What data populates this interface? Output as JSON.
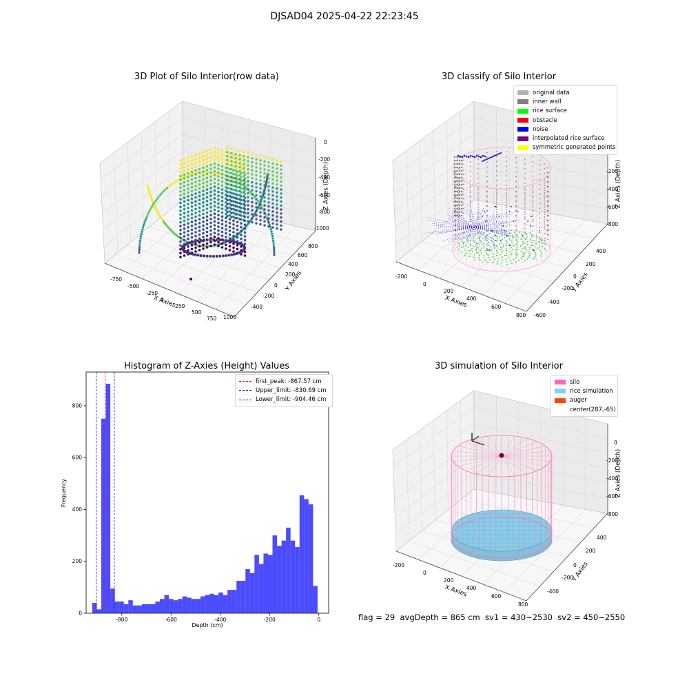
{
  "suptitle": "DJSAD04 2025-04-22 22:23:45",
  "panels": {
    "raw": {
      "title": "3D Plot of Silo Interior(row data)",
      "xlabel": "X Axies",
      "ylabel": "Y Axies",
      "zlabel": "Z Axies (Depth)",
      "xticks": [
        "-750",
        "-500",
        "-250",
        "0",
        "250",
        "500",
        "750",
        "1000"
      ],
      "yticks": [
        "-400",
        "-200",
        "0",
        "200",
        "400",
        "600",
        "800"
      ],
      "zticks": [
        "0",
        "-200",
        "-400",
        "-600",
        "-800",
        "-1000"
      ]
    },
    "classify": {
      "title": "3D classify of Silo Interior",
      "xlabel": "X Axies",
      "ylabel": "Y Axies",
      "zlabel": "Z Axies (Depth)",
      "xticks": [
        "-200",
        "0",
        "200",
        "400",
        "600",
        "800"
      ],
      "yticks": [
        "-600",
        "-400",
        "-200",
        "0",
        "200",
        "400"
      ],
      "zticks": [
        "0",
        "-200",
        "-400",
        "-600",
        "-800"
      ],
      "legend": [
        {
          "label": "original data",
          "color": "#b3b3b3"
        },
        {
          "label": "inner wall",
          "color": "#808080"
        },
        {
          "label": "rice surface",
          "color": "#00ff00"
        },
        {
          "label": "obstacle",
          "color": "#ff0000"
        },
        {
          "label": "noise",
          "color": "#0000ff"
        },
        {
          "label": "interpolated rice surface",
          "color": "#800080"
        },
        {
          "label": "symmetric generated points",
          "color": "#ffff00"
        }
      ]
    },
    "simulation": {
      "title": "3D simulation of Silo Interior",
      "xlabel": "X Axies",
      "ylabel": "Y Axies",
      "zlabel": "Z Axies (Depth)",
      "xticks": [
        "-200",
        "0",
        "200",
        "400",
        "600",
        "800"
      ],
      "yticks": [
        "-400",
        "-200",
        "0",
        "200",
        "400"
      ],
      "zticks": [
        "0",
        "-200",
        "-400",
        "-600",
        "-800"
      ],
      "legend": [
        {
          "label": "silo",
          "color": "#ff69b4"
        },
        {
          "label": "rice simulation",
          "color": "#87ceeb"
        },
        {
          "label": "auger",
          "color": "#ff4500"
        },
        {
          "label": "center(287,-65)",
          "color": ""
        }
      ]
    }
  },
  "footer": "flag = 29  avgDepth = 865 cm  sv1 = 430~2530  sv2 = 450~2550",
  "chart_data": [
    {
      "type": "bar",
      "title": "Histogram of Z-Axies (Height) Values",
      "xlabel": "Depth (cm)",
      "ylabel": "Frequency",
      "xlim": [
        -945,
        40
      ],
      "ylim": [
        0,
        930
      ],
      "bin_width": 18.3,
      "bin_start": -920,
      "values": [
        40,
        15,
        750,
        885,
        95,
        45,
        45,
        35,
        50,
        30,
        30,
        35,
        35,
        35,
        45,
        55,
        70,
        55,
        50,
        55,
        65,
        60,
        55,
        55,
        65,
        70,
        75,
        70,
        80,
        70,
        90,
        90,
        125,
        125,
        170,
        155,
        225,
        190,
        230,
        225,
        300,
        260,
        280,
        330,
        280,
        255,
        455,
        440,
        420,
        105
      ],
      "xticks": [
        "-800",
        "-600",
        "-400",
        "-200",
        "0"
      ],
      "yticks": [
        "0",
        "200",
        "400",
        "600",
        "800"
      ],
      "xtick_values": [
        -800,
        -600,
        -400,
        -200,
        0
      ],
      "ytick_values": [
        0,
        200,
        400,
        600,
        800
      ],
      "bar_color": "#0000ff",
      "vlines": [
        {
          "label": "first_peak: -867.57 cm",
          "value": -867.57,
          "color": "#ff0000"
        },
        {
          "label": "Upper_limit: -830.69 cm",
          "value": -830.69,
          "color": "#0000ff"
        },
        {
          "label": "Lower_limit: -904.46 cm",
          "value": -904.46,
          "color": "#0000ff"
        }
      ]
    }
  ]
}
